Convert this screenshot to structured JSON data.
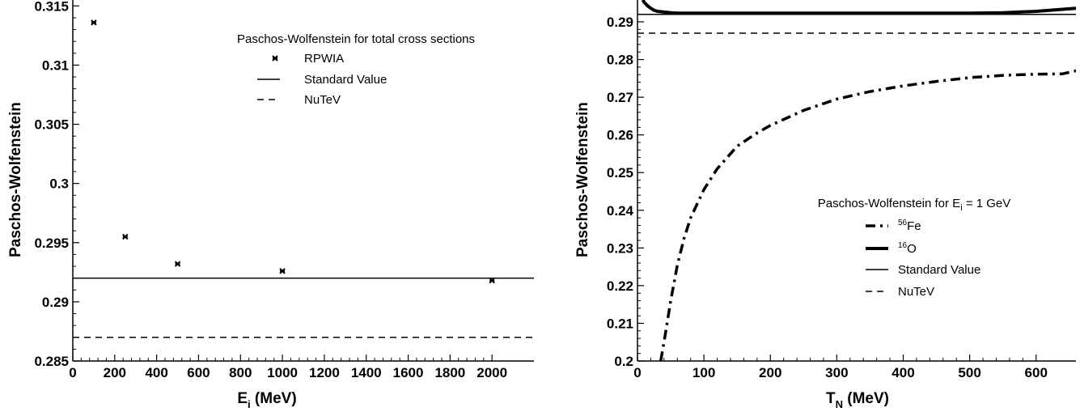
{
  "chart_data": [
    {
      "type": "scatter",
      "xlabel": "E",
      "xlabel_sub": "i",
      "xlabel_unit": " (MeV)",
      "ylabel": "Paschos-Wolfenstein",
      "xlim": [
        0,
        2200
      ],
      "ylim": [
        0.285,
        0.3155
      ],
      "xticks": [
        0,
        200,
        400,
        600,
        800,
        1000,
        1200,
        1400,
        1600,
        1800,
        2000
      ],
      "xtick_labels": [
        "0",
        "200",
        "400",
        "600",
        "800",
        "1000",
        "1200",
        "1400",
        "1600",
        "1800",
        "2000"
      ],
      "yticks": [
        0.285,
        0.29,
        0.295,
        0.3,
        0.305,
        0.31,
        0.315
      ],
      "ytick_labels": [
        "0.285",
        "0.29",
        "0.295",
        "0.3",
        "0.305",
        "0.31",
        "0.315"
      ],
      "legend_title": "Paschos-Wolfenstein for total cross sections",
      "legend_position": "top-right",
      "series": [
        {
          "name": "RPWIA",
          "style": "markers",
          "x": [
            100,
            250,
            500,
            1000,
            2000
          ],
          "y": [
            0.3136,
            0.2955,
            0.2932,
            0.2926,
            0.2918
          ]
        },
        {
          "name": "Standard Value",
          "style": "solid",
          "x": [
            0,
            2200
          ],
          "y": [
            0.292,
            0.292
          ]
        },
        {
          "name": "NuTeV",
          "style": "dashed",
          "x": [
            0,
            2200
          ],
          "y": [
            0.287,
            0.287
          ]
        }
      ]
    },
    {
      "type": "line",
      "xlabel": "T",
      "xlabel_sub": "N",
      "xlabel_unit": " (MeV)",
      "ylabel": "Paschos-Wolfenstein",
      "xlim": [
        0,
        660
      ],
      "ylim": [
        0.2,
        0.2958
      ],
      "xticks": [
        0,
        100,
        200,
        300,
        400,
        500,
        600
      ],
      "xtick_labels": [
        "0",
        "100",
        "200",
        "300",
        "400",
        "500",
        "600"
      ],
      "yticks": [
        0.2,
        0.21,
        0.22,
        0.23,
        0.24,
        0.25,
        0.26,
        0.27,
        0.28,
        0.29
      ],
      "ytick_labels": [
        "0.2",
        "0.21",
        "0.22",
        "0.23",
        "0.24",
        "0.25",
        "0.26",
        "0.27",
        "0.28",
        "0.29"
      ],
      "legend_title": "Paschos-Wolfenstein for E",
      "legend_title_sub": "i",
      "legend_title_rest": " = 1 GeV",
      "legend_position": "center-right",
      "series": [
        {
          "name": "Fe",
          "name_sup": "56",
          "style": "dashdot",
          "x": [
            35,
            40,
            50,
            60,
            70,
            80,
            100,
            120,
            150,
            180,
            200,
            250,
            300,
            350,
            400,
            450,
            500,
            550,
            600,
            640,
            660
          ],
          "y": [
            0.2,
            0.205,
            0.216,
            0.2255,
            0.2325,
            0.238,
            0.2455,
            0.251,
            0.257,
            0.2605,
            0.2625,
            0.2665,
            0.2695,
            0.2715,
            0.273,
            0.2742,
            0.2752,
            0.2758,
            0.2761,
            0.2762,
            0.277
          ]
        },
        {
          "name": "O",
          "name_sup": "16",
          "style": "thick",
          "x": [
            8,
            10,
            15,
            20,
            25,
            30,
            40,
            50,
            60,
            75,
            100,
            200,
            300,
            400,
            500,
            550,
            600,
            630,
            660
          ],
          "y": [
            0.2958,
            0.2952,
            0.2943,
            0.2936,
            0.2931,
            0.2928,
            0.2926,
            0.2924,
            0.2923,
            0.2923,
            0.2923,
            0.2923,
            0.2923,
            0.2923,
            0.2923,
            0.2924,
            0.2928,
            0.2932,
            0.2936
          ]
        },
        {
          "name": "Standard Value",
          "style": "solid",
          "x": [
            0,
            660
          ],
          "y": [
            0.292,
            0.292
          ]
        },
        {
          "name": "NuTeV",
          "style": "dashed",
          "x": [
            0,
            660
          ],
          "y": [
            0.287,
            0.287
          ]
        }
      ]
    }
  ]
}
